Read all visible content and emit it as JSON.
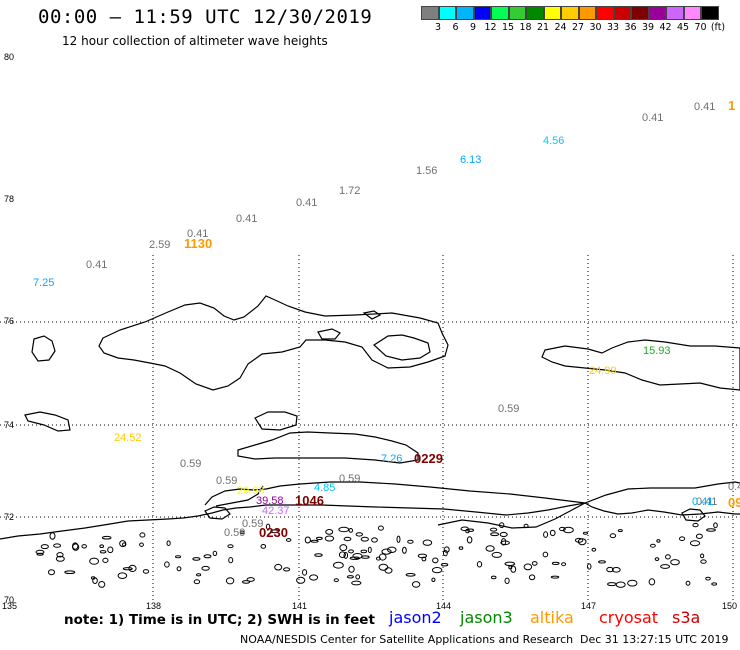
{
  "header": {
    "title": "00:00 – 11:59 UTC 12/30/2019",
    "subtitle": "12 hour collection of altimeter wave heights"
  },
  "legend": {
    "colors": [
      "#7f7f7f",
      "#00ffff",
      "#00b4ff",
      "#0000ff",
      "#00ff55",
      "#33cc33",
      "#008800",
      "#ffff00",
      "#ffcc00",
      "#ff9900",
      "#ff0000",
      "#cc0000",
      "#7f0000",
      "#990099",
      "#cc66ff",
      "#ff88ff",
      "#000000"
    ],
    "labels": [
      "3",
      "6",
      "9",
      "12",
      "15",
      "18",
      "21",
      "24",
      "27",
      "30",
      "33",
      "36",
      "39",
      "42",
      "45",
      "70",
      "(ft)"
    ]
  },
  "axes": {
    "lat_labels": [
      "80",
      "78",
      "76",
      "74",
      "72",
      "70"
    ],
    "lon_labels": [
      "135",
      "138",
      "141",
      "144",
      "147",
      "150"
    ]
  },
  "observations": [
    {
      "v": "0.41",
      "c": "#707070"
    },
    {
      "v": "1",
      "c": "#ff9900"
    },
    {
      "v": "0.41",
      "c": "#707070"
    },
    {
      "v": "4.56",
      "c": "#00c8ff"
    },
    {
      "v": "6.13",
      "c": "#00aaff"
    },
    {
      "v": "1.56",
      "c": "#707070"
    },
    {
      "v": "1.72",
      "c": "#707070"
    },
    {
      "v": "0.41",
      "c": "#707070"
    },
    {
      "v": "0.41",
      "c": "#707070"
    },
    {
      "v": "0.41",
      "c": "#707070"
    },
    {
      "v": "2.59",
      "c": "#707070"
    },
    {
      "v": "1130",
      "c": "#ff9900"
    },
    {
      "v": "0.41",
      "c": "#707070"
    },
    {
      "v": "7.25",
      "c": "#00aaff"
    },
    {
      "v": "15.93",
      "c": "#22aa22"
    },
    {
      "v": "24.99",
      "c": "#ffcc00"
    },
    {
      "v": "0.59",
      "c": "#707070"
    },
    {
      "v": "24.52",
      "c": "#ffcc00"
    },
    {
      "v": "7.26",
      "c": "#00aaff"
    },
    {
      "v": "0229",
      "c": "#7f0000"
    },
    {
      "v": "0.59",
      "c": "#707070"
    },
    {
      "v": "0.59",
      "c": "#707070"
    },
    {
      "v": "0.59",
      "c": "#707070"
    },
    {
      "v": "4.85",
      "c": "#00c8ff"
    },
    {
      "v": "29.98",
      "c": "#ffff00"
    },
    {
      "v": "39.58",
      "c": "#990099"
    },
    {
      "v": "1046",
      "c": "#7f0000"
    },
    {
      "v": "42.37",
      "c": "#cc66ff"
    },
    {
      "v": "0.59",
      "c": "#707070"
    },
    {
      "v": "0.59",
      "c": "#707070"
    },
    {
      "v": "0230",
      "c": "#7f0000"
    },
    {
      "v": "0.4",
      "c": "#707070"
    },
    {
      "v": "0.41",
      "c": "#707070"
    },
    {
      "v": "0.41",
      "c": "#00aaff"
    },
    {
      "v": "09",
      "c": "#ff9900"
    }
  ],
  "footer": {
    "note": "note: 1) Time is in UTC; 2) SWH is in feet",
    "satellites": [
      {
        "name": "jason2",
        "color": "#0000ff"
      },
      {
        "name": "jason3",
        "color": "#008800"
      },
      {
        "name": "altika",
        "color": "#ff9900"
      },
      {
        "name": "cryosat",
        "color": "#ff0000"
      },
      {
        "name": "s3a",
        "color": "#cc0000"
      }
    ],
    "credit": "NOAA/NESDIS Center for Satellite Applications and Research",
    "timestamp": "Dec 31 13:27:15 UTC 2019"
  }
}
